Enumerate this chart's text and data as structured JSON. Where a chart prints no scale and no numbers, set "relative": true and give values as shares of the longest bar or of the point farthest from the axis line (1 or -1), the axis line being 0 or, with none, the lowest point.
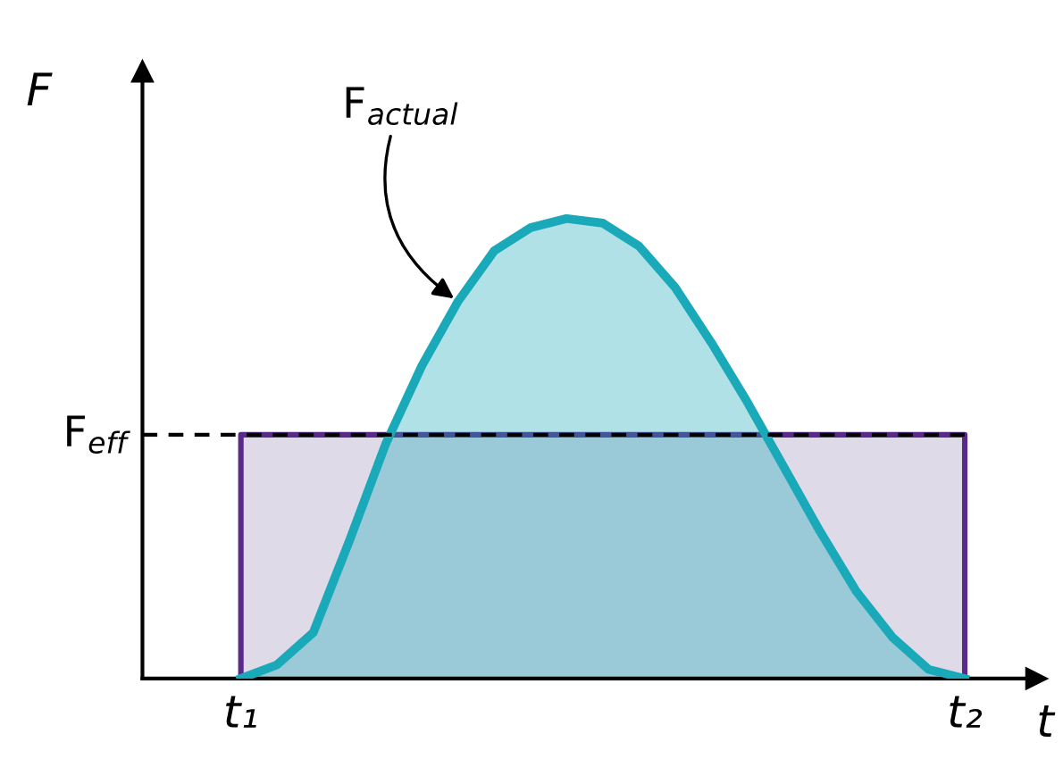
{
  "chart_data": {
    "type": "area",
    "relative": true,
    "xlabel": "t",
    "ylabel": "F",
    "categories": [
      "t₁",
      null,
      null,
      null,
      null,
      null,
      null,
      null,
      null,
      null,
      null,
      null,
      null,
      null,
      null,
      null,
      null,
      null,
      null,
      null,
      "t₂"
    ],
    "series": [
      {
        "color": "#c9c1d9",
        "values": [
          0.53,
          0.53,
          0.53,
          0.53,
          0.53,
          0.53,
          0.53,
          0.53,
          0.53,
          0.53,
          0.53,
          0.53,
          0.53,
          0.53,
          0.53,
          0.53,
          0.53,
          0.53,
          0.53,
          0.53,
          0.53
        ]
      },
      {
        "name": "F$_{actual}$",
        "color": "#19a9b8",
        "values": [
          0,
          0.03,
          0.1,
          0.3,
          0.51,
          0.68,
          0.82,
          0.93,
          0.98,
          1.0,
          0.99,
          0.94,
          0.85,
          0.73,
          0.6,
          0.46,
          0.32,
          0.19,
          0.09,
          0.02,
          0
        ]
      }
    ],
    "ref_lines": [
      {
        "axis": "y",
        "value": 0.53,
        "label": "F$_{eff}$",
        "color": "#000000",
        "line_style": "dashed"
      }
    ],
    "legend": false,
    "grid": false
  }
}
